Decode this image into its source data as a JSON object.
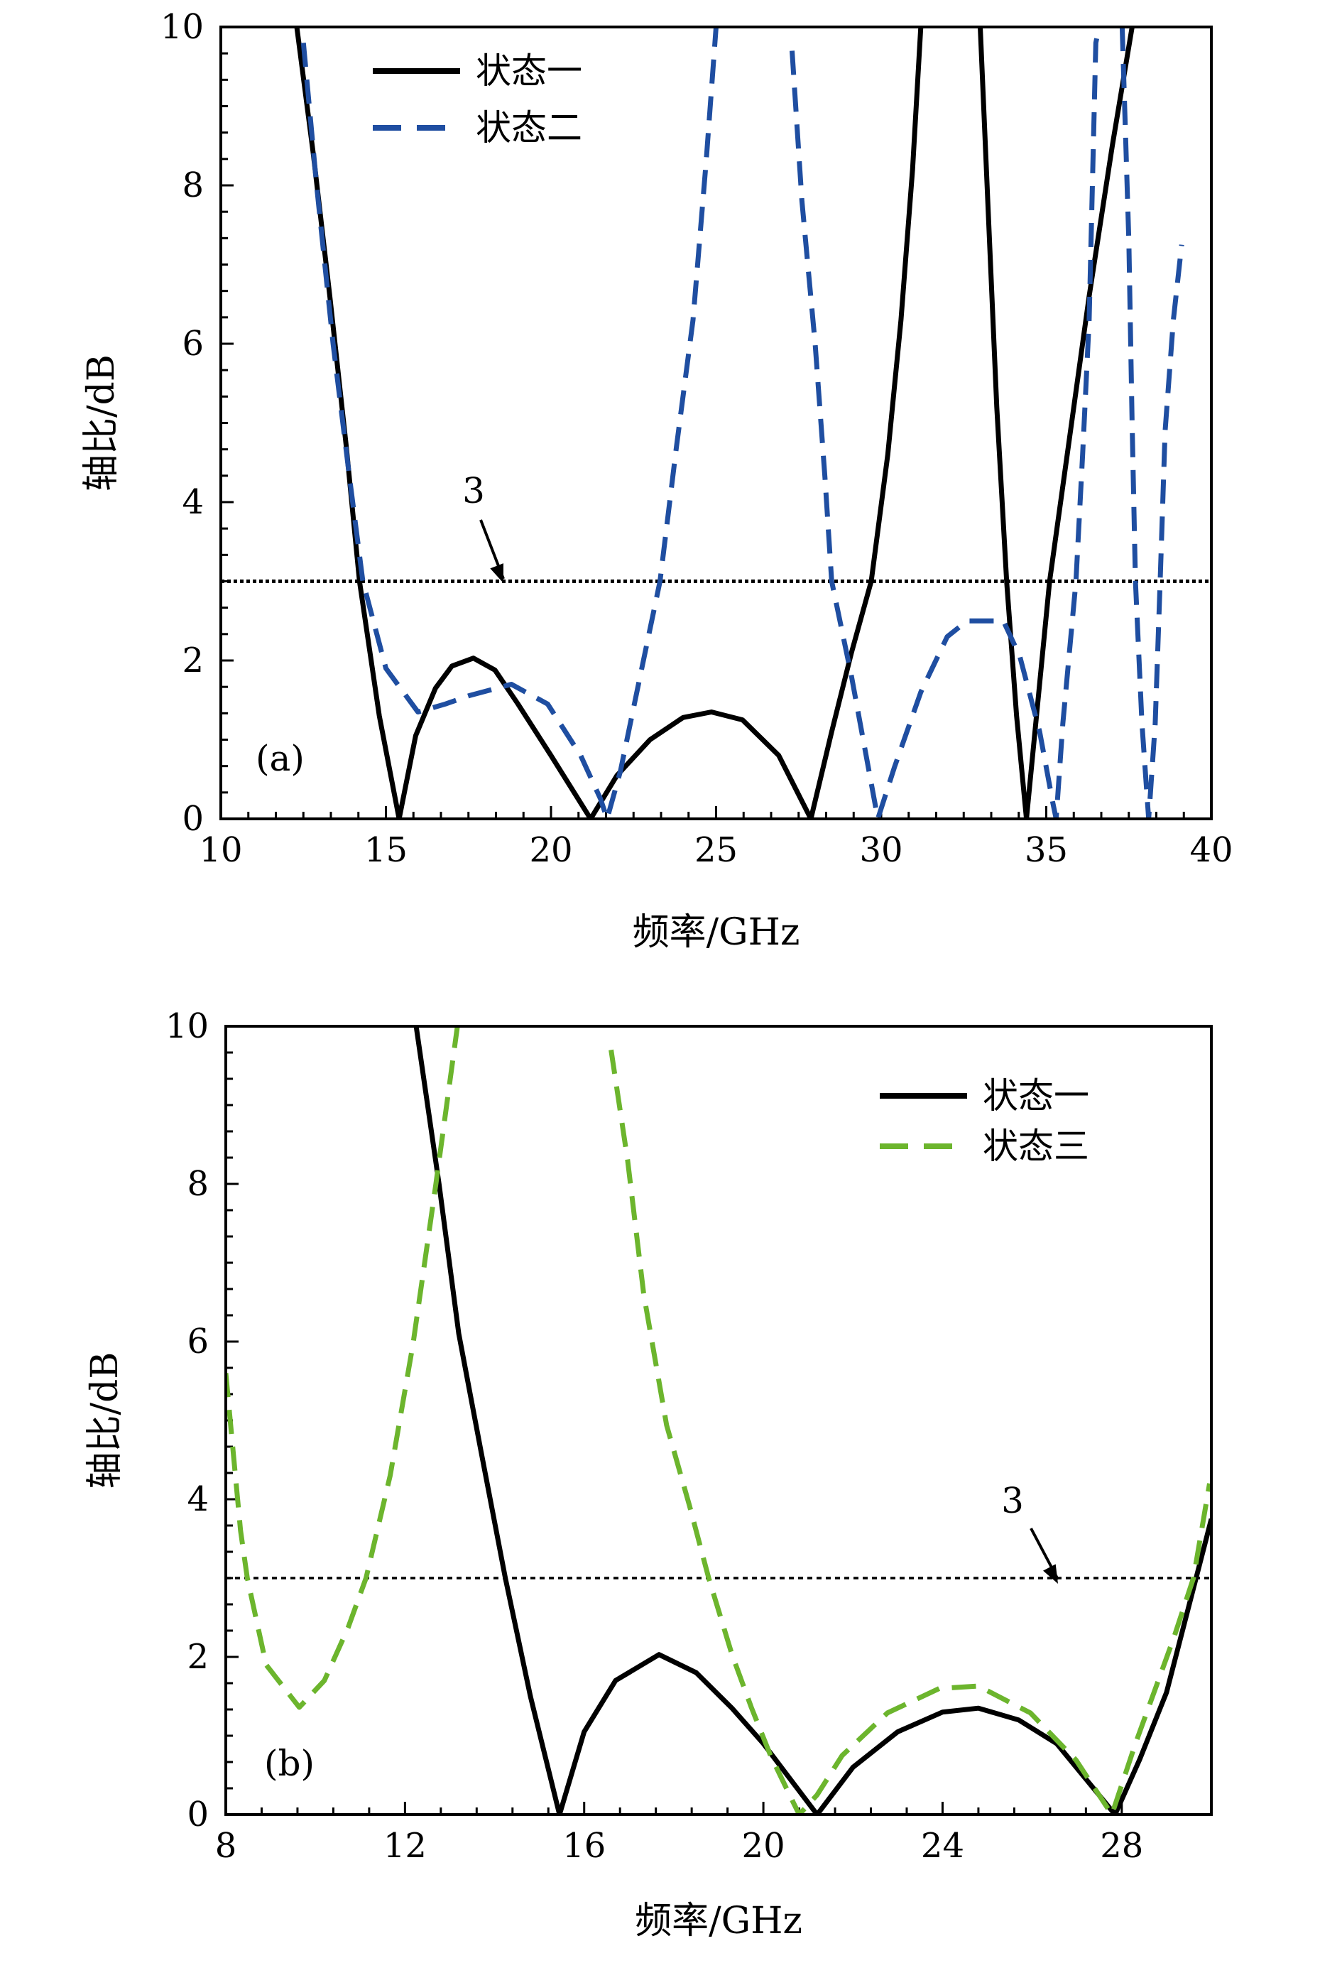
{
  "chart_data": [
    {
      "type": "line",
      "panel_label": "(a)",
      "xlabel": "频率/GHz",
      "ylabel": "轴比/dB",
      "xlim": [
        10,
        40
      ],
      "ylim": [
        0,
        10
      ],
      "xticks": [
        10,
        15,
        20,
        25,
        30,
        35,
        40
      ],
      "yticks": [
        0,
        2,
        4,
        6,
        8,
        10
      ],
      "x_minor_per_major": 6,
      "y_minor_per_major": 6,
      "legend_position": "top-left",
      "threshold": {
        "value": 3,
        "label": "3"
      },
      "series": [
        {
          "name": "状态一",
          "color": "#000000",
          "style": "solid",
          "segments": [
            [
              [
                12.3,
                10
              ],
              [
                12.8,
                8.4
              ],
              [
                13.3,
                6.6
              ],
              [
                13.8,
                4.7
              ],
              [
                14.2,
                3.0
              ],
              [
                14.8,
                1.3
              ],
              [
                15.4,
                0
              ],
              [
                15.9,
                1.05
              ],
              [
                16.5,
                1.65
              ],
              [
                17.0,
                1.93
              ],
              [
                17.65,
                2.03
              ],
              [
                18.3,
                1.88
              ],
              [
                19.0,
                1.45
              ],
              [
                20.0,
                0.8
              ],
              [
                21.2,
                0
              ],
              [
                22.0,
                0.55
              ],
              [
                23.0,
                1.0
              ],
              [
                24.0,
                1.28
              ],
              [
                24.86,
                1.35
              ],
              [
                25.8,
                1.25
              ],
              [
                26.9,
                0.8
              ],
              [
                27.87,
                0
              ],
              [
                28.5,
                1.1
              ],
              [
                29.1,
                2.1
              ],
              [
                29.7,
                3.0
              ],
              [
                30.2,
                4.6
              ],
              [
                30.6,
                6.3
              ],
              [
                30.95,
                8.2
              ],
              [
                31.2,
                10
              ]
            ],
            [
              [
                33.0,
                10
              ],
              [
                33.25,
                7.6
              ],
              [
                33.5,
                5.2
              ],
              [
                33.8,
                3.0
              ],
              [
                34.1,
                1.3
              ],
              [
                34.4,
                0
              ],
              [
                34.75,
                1.5
              ],
              [
                35.1,
                3.0
              ],
              [
                35.7,
                4.8
              ],
              [
                36.3,
                6.6
              ],
              [
                37.0,
                8.5
              ],
              [
                37.6,
                10
              ]
            ]
          ]
        },
        {
          "name": "状态二",
          "color": "#1f4ea1",
          "style": "dashed",
          "segments": [
            [
              [
                12.5,
                9.8
              ],
              [
                12.9,
                8.0
              ],
              [
                13.4,
                6.0
              ],
              [
                13.9,
                4.3
              ],
              [
                14.3,
                3.0
              ],
              [
                15.0,
                1.9
              ],
              [
                15.97,
                1.35
              ],
              [
                16.8,
                1.45
              ],
              [
                17.55,
                1.56
              ],
              [
                18.8,
                1.7
              ],
              [
                19.9,
                1.45
              ],
              [
                20.9,
                0.8
              ],
              [
                21.5,
                0.25
              ],
              [
                21.7,
                0
              ],
              [
                22.1,
                0.6
              ],
              [
                22.7,
                1.8
              ],
              [
                23.3,
                3.0
              ],
              [
                23.8,
                4.7
              ],
              [
                24.3,
                6.3
              ],
              [
                24.7,
                8.3
              ],
              [
                25.0,
                10
              ]
            ],
            [
              [
                27.3,
                9.7
              ],
              [
                27.6,
                7.8
              ],
              [
                28.0,
                6.0
              ],
              [
                28.3,
                4.3
              ],
              [
                28.5,
                3.0
              ],
              [
                29.1,
                1.8
              ],
              [
                29.7,
                0.45
              ],
              [
                29.9,
                0
              ],
              [
                30.4,
                0.65
              ],
              [
                31.2,
                1.6
              ],
              [
                32.0,
                2.3
              ],
              [
                32.6,
                2.5
              ],
              [
                33.7,
                2.5
              ],
              [
                34.2,
                2.05
              ],
              [
                34.8,
                1.1
              ],
              [
                35.2,
                0.2
              ],
              [
                35.3,
                0
              ],
              [
                35.5,
                1.2
              ],
              [
                35.9,
                3.0
              ],
              [
                36.1,
                4.6
              ],
              [
                36.3,
                6.3
              ],
              [
                36.5,
                9.8
              ],
              [
                36.6,
                10
              ]
            ],
            [
              [
                37.3,
                10
              ],
              [
                37.5,
                7.3
              ],
              [
                37.6,
                5.0
              ],
              [
                37.7,
                3.0
              ],
              [
                37.9,
                1.2
              ],
              [
                38.1,
                0
              ],
              [
                38.3,
                1.2
              ],
              [
                38.45,
                3.0
              ],
              [
                38.6,
                4.9
              ],
              [
                38.85,
                6.3
              ],
              [
                39.1,
                7.25
              ]
            ]
          ]
        }
      ]
    },
    {
      "type": "line",
      "panel_label": "(b)",
      "xlabel": "频率/GHz",
      "ylabel": "轴比/dB",
      "xlim": [
        8,
        30
      ],
      "ylim": [
        0,
        10
      ],
      "xticks": [
        8,
        12,
        16,
        20,
        24,
        28
      ],
      "yticks": [
        0,
        2,
        4,
        6,
        8,
        10
      ],
      "x_minor_per_major": 5,
      "y_minor_per_major": 6,
      "legend_position": "top-right",
      "threshold": {
        "value": 3,
        "label": "3"
      },
      "series": [
        {
          "name": "状态一",
          "color": "#000000",
          "style": "solid",
          "segments": [
            [
              [
                12.25,
                10
              ],
              [
                12.76,
                8.0
              ],
              [
                13.2,
                6.1
              ],
              [
                13.7,
                4.6
              ],
              [
                14.24,
                3.0
              ],
              [
                14.8,
                1.5
              ],
              [
                15.45,
                0
              ],
              [
                16.0,
                1.05
              ],
              [
                16.7,
                1.7
              ],
              [
                17.67,
                2.03
              ],
              [
                18.5,
                1.8
              ],
              [
                19.3,
                1.35
              ],
              [
                20.0,
                0.9
              ],
              [
                21.2,
                0
              ],
              [
                22.0,
                0.6
              ],
              [
                23.0,
                1.05
              ],
              [
                24.0,
                1.3
              ],
              [
                24.8,
                1.35
              ],
              [
                25.7,
                1.2
              ],
              [
                26.55,
                0.9
              ],
              [
                27.85,
                0
              ],
              [
                28.4,
                0.7
              ],
              [
                29.0,
                1.55
              ],
              [
                29.66,
                3.0
              ],
              [
                30.0,
                3.75
              ]
            ]
          ]
        },
        {
          "name": "状态三",
          "color": "#6cb52d",
          "style": "dashed",
          "segments": [
            [
              [
                8.0,
                5.6
              ],
              [
                8.33,
                3.6
              ],
              [
                8.48,
                3.0
              ],
              [
                8.9,
                1.9
              ],
              [
                9.64,
                1.36
              ],
              [
                10.2,
                1.7
              ],
              [
                10.73,
                2.37
              ],
              [
                11.13,
                3.0
              ],
              [
                11.67,
                4.3
              ],
              [
                12.18,
                5.97
              ],
              [
                12.69,
                8.0
              ],
              [
                13.17,
                10
              ]
            ],
            [
              [
                16.6,
                9.7
              ],
              [
                16.97,
                8.3
              ],
              [
                17.33,
                6.6
              ],
              [
                17.84,
                4.94
              ],
              [
                18.35,
                3.92
              ],
              [
                18.78,
                3.0
              ],
              [
                19.3,
                2.03
              ],
              [
                19.73,
                1.36
              ],
              [
                20.16,
                0.75
              ],
              [
                20.67,
                0.15
              ],
              [
                20.8,
                0
              ],
              [
                21.2,
                0.25
              ],
              [
                21.76,
                0.75
              ],
              [
                22.77,
                1.29
              ],
              [
                23.93,
                1.6
              ],
              [
                24.8,
                1.63
              ],
              [
                25.96,
                1.29
              ],
              [
                26.98,
                0.69
              ],
              [
                27.78,
                0
              ],
              [
                28.3,
                0.89
              ],
              [
                29.16,
                2.24
              ],
              [
                29.6,
                3.0
              ],
              [
                29.96,
                4.2
              ]
            ]
          ]
        }
      ]
    }
  ]
}
